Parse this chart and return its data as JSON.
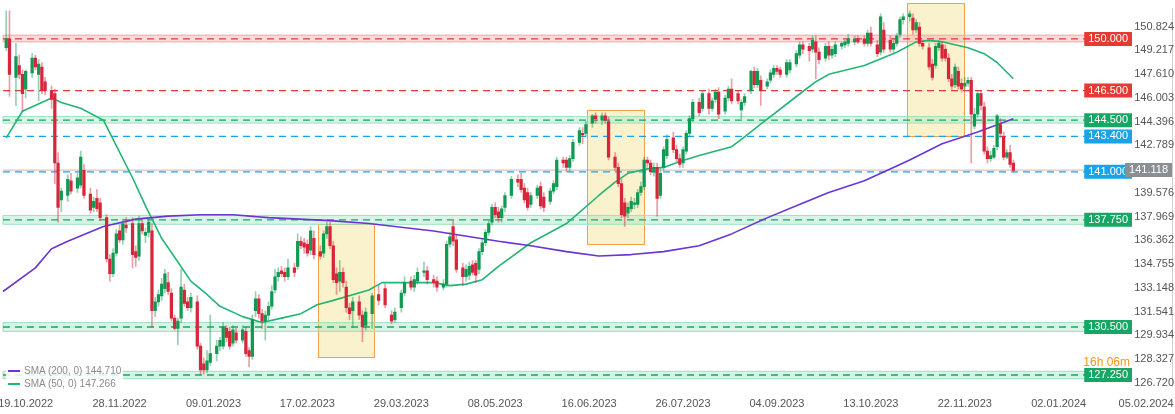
{
  "chart_data": {
    "type": "candlestick",
    "categories": [
      null,
      null,
      null,
      null,
      null,
      null,
      null,
      "19.10.2022",
      null,
      null,
      null,
      null,
      null,
      null,
      null,
      null,
      null,
      null,
      null,
      null,
      null,
      null,
      null,
      null,
      null,
      null,
      null,
      null,
      null,
      null,
      null,
      null,
      null,
      null,
      null,
      null,
      "28.11.2022",
      null,
      null,
      null,
      null,
      null,
      null,
      null,
      null,
      null,
      null,
      null,
      null,
      null,
      null,
      null,
      null,
      null,
      null,
      null,
      null,
      null,
      null,
      null,
      null,
      null,
      null,
      null,
      null,
      "09.01.2023",
      null,
      null,
      null,
      null,
      null,
      null,
      null,
      null,
      null,
      null,
      null,
      null,
      null,
      null,
      null,
      null,
      null,
      null,
      null,
      null,
      null,
      null,
      null,
      null,
      null,
      null,
      null,
      null,
      "17.02.2023",
      null,
      null,
      null,
      null,
      null,
      null,
      null,
      null,
      null,
      null,
      null,
      null,
      null,
      null,
      null,
      null,
      null,
      null,
      null,
      null,
      null,
      null,
      null,
      null,
      null,
      null,
      null,
      null,
      "29.03.2023",
      null,
      null,
      null,
      null,
      null,
      null,
      null,
      null,
      null,
      null,
      null,
      null,
      null,
      null,
      null,
      null,
      null,
      null,
      null,
      null,
      null,
      null,
      null,
      null,
      null,
      null,
      null,
      null,
      "08.05.2023",
      null,
      null,
      null,
      null,
      null,
      null,
      null,
      null,
      null,
      null,
      null,
      null,
      null,
      null,
      null,
      null,
      null,
      null,
      null,
      null,
      null,
      null,
      null,
      null,
      null,
      null,
      null,
      null,
      "16.06.2023",
      null,
      null,
      null,
      null,
      null,
      null,
      null,
      null,
      null,
      null,
      null,
      null,
      null,
      null,
      null,
      null,
      null,
      null,
      null,
      null,
      null,
      null,
      null,
      null,
      null,
      null,
      null,
      null,
      "26.07.2023",
      null,
      null,
      null,
      null,
      null,
      null,
      null,
      null,
      null,
      null,
      null,
      null,
      null,
      null,
      null,
      null,
      null,
      null,
      null,
      null,
      null,
      null,
      null,
      null,
      null,
      null,
      null,
      null,
      "04.09.2023",
      null,
      null,
      null,
      null,
      null,
      null,
      null,
      null,
      null,
      null,
      null,
      null,
      null,
      null,
      null,
      null,
      null,
      null,
      null,
      null,
      null,
      null,
      null,
      null,
      null,
      null,
      null,
      null,
      "13.10.2023",
      null,
      null,
      null,
      null,
      null,
      null,
      null,
      null,
      null,
      null,
      null,
      null,
      null,
      null,
      null,
      null,
      null,
      null,
      null,
      null,
      null,
      null,
      null,
      null,
      null,
      null,
      null,
      null,
      "22.11.2023",
      null,
      null,
      null,
      null,
      null,
      null,
      null,
      null,
      null,
      null,
      null,
      null,
      null,
      null,
      null,
      null,
      null,
      null,
      null,
      null,
      null,
      null,
      null,
      null,
      null,
      null,
      null,
      null,
      "02.01.2024",
      null,
      null,
      null,
      null,
      null,
      null,
      null,
      null,
      null,
      null,
      null,
      null,
      null,
      null,
      null,
      null,
      null,
      null,
      null,
      null,
      null,
      null,
      null,
      null,
      null,
      null,
      "05.02.2024",
      null,
      null,
      null,
      null,
      null,
      null,
      null,
      null
    ],
    "ohlc": [
      null,
      [
        149.4,
        151.9,
        149.2,
        150.0
      ],
      [
        150.0,
        151.9,
        146.1,
        147.6
      ],
      null,
      [
        147.4,
        149.7,
        145.5,
        148.8
      ],
      [
        148.2,
        148.9,
        147.3,
        147.6
      ],
      [
        147.6,
        147.9,
        145.1,
        146.3
      ],
      [
        146.6,
        147.9,
        146.0,
        147.8
      ],
      null,
      [
        147.7,
        149.0,
        147.4,
        148.7
      ],
      [
        148.7,
        148.9,
        147.9,
        148.1
      ],
      [
        147.6,
        148.6,
        145.8,
        148.3
      ],
      [
        148.1,
        148.4,
        146.3,
        146.5
      ],
      [
        147.1,
        147.4,
        146.2,
        146.5
      ],
      null,
      [
        146.5,
        146.8,
        145.3,
        145.9
      ],
      [
        146.3,
        146.6,
        140.2,
        141.6
      ],
      [
        141.6,
        142.3,
        137.6,
        138.6
      ],
      [
        139.1,
        139.9,
        138.3,
        139.7
      ],
      null,
      [
        139.4,
        140.8,
        139.0,
        140.5
      ],
      [
        140.4,
        140.9,
        139.5,
        139.7
      ],
      null,
      [
        139.9,
        140.9,
        139.6,
        140.6
      ],
      [
        140.1,
        142.4,
        139.9,
        142.0
      ],
      [
        141.1,
        141.5,
        139.2,
        139.4
      ],
      null,
      [
        139.5,
        139.9,
        138.2,
        138.4
      ],
      [
        138.6,
        139.3,
        138.3,
        139.0
      ],
      [
        139.2,
        139.8,
        138.3,
        138.5
      ],
      [
        138.9,
        139.2,
        137.7,
        137.9
      ],
      null,
      [
        137.9,
        138.1,
        134.9,
        135.1
      ],
      [
        135.1,
        135.4,
        133.6,
        134.1
      ],
      [
        134.1,
        135.8,
        133.9,
        135.5
      ],
      [
        135.5,
        137.1,
        135.3,
        136.8
      ],
      [
        137.0,
        137.4,
        136.2,
        136.4
      ],
      [
        136.4,
        137.8,
        136.1,
        137.5
      ],
      [
        137.4,
        137.9,
        136.9,
        137.2
      ],
      null,
      [
        137.5,
        137.9,
        134.5,
        135.4
      ],
      [
        135.6,
        136.0,
        134.6,
        135.2
      ],
      [
        135.3,
        138.0,
        135.0,
        137.5
      ],
      [
        137.5,
        137.8,
        136.8,
        137.0
      ],
      [
        136.7,
        137.2,
        136.2,
        136.9
      ],
      [
        136.9,
        137.9,
        136.6,
        137.6
      ],
      [
        137.0,
        137.5,
        130.5,
        131.6
      ],
      [
        131.6,
        132.5,
        131.2,
        132.2
      ],
      [
        132.2,
        133.0,
        131.9,
        132.7
      ],
      [
        132.6,
        133.8,
        132.3,
        133.4
      ],
      [
        133.1,
        134.4,
        132.8,
        134.1
      ],
      [
        133.5,
        134.2,
        132.7,
        132.9
      ],
      [
        132.8,
        133.1,
        130.9,
        131.1
      ],
      [
        131.1,
        131.3,
        130.3,
        130.4
      ],
      [
        130.4,
        131.1,
        129.3,
        130.9
      ],
      [
        131.1,
        134.4,
        130.8,
        133.2
      ],
      [
        133.0,
        133.4,
        131.9,
        132.1
      ],
      [
        132.2,
        132.5,
        131.6,
        131.8
      ],
      [
        131.8,
        132.8,
        131.5,
        132.5
      ],
      null,
      [
        132.2,
        132.6,
        129.0,
        129.2
      ],
      [
        129.2,
        129.4,
        127.3,
        127.6
      ],
      [
        128.0,
        128.4,
        127.3,
        127.6
      ],
      [
        127.6,
        128.9,
        127.4,
        128.2
      ],
      [
        128.1,
        131.3,
        127.9,
        128.7
      ],
      null,
      [
        128.7,
        129.6,
        128.2,
        129.2
      ],
      [
        129.2,
        129.8,
        128.9,
        129.6
      ],
      [
        129.2,
        130.8,
        129.0,
        130.5
      ],
      [
        130.4,
        130.6,
        129.5,
        129.8
      ],
      [
        130.2,
        130.5,
        129.0,
        129.2
      ],
      [
        129.4,
        130.6,
        129.2,
        130.3
      ],
      [
        130.1,
        130.4,
        129.4,
        129.6
      ],
      null,
      [
        129.6,
        130.6,
        129.4,
        130.3
      ],
      [
        130.2,
        130.5,
        128.5,
        128.7
      ],
      [
        128.9,
        129.1,
        127.8,
        128.5
      ],
      [
        128.5,
        131.3,
        128.3,
        131.0
      ],
      [
        131.6,
        132.9,
        131.2,
        132.4
      ],
      [
        132.4,
        132.7,
        131.1,
        131.4
      ],
      [
        131.4,
        131.7,
        130.4,
        130.9
      ],
      [
        130.9,
        131.6,
        129.6,
        131.3
      ],
      [
        131.3,
        132.2,
        131.0,
        131.9
      ],
      [
        131.9,
        133.3,
        131.7,
        132.9
      ],
      [
        133.0,
        134.4,
        132.8,
        133.9
      ],
      [
        133.9,
        134.5,
        133.6,
        134.2
      ],
      [
        134.3,
        134.6,
        133.9,
        134.1
      ],
      [
        134.2,
        134.5,
        133.6,
        133.9
      ],
      [
        133.9,
        135.1,
        133.7,
        134.5
      ],
      null,
      [
        134.5,
        134.8,
        133.9,
        134.2
      ],
      [
        134.6,
        136.8,
        134.4,
        136.3
      ],
      [
        136.3,
        136.6,
        135.8,
        136.0
      ],
      [
        136.2,
        136.5,
        135.5,
        135.9
      ],
      [
        136.1,
        136.4,
        135.3,
        135.5
      ],
      [
        135.7,
        137.3,
        135.4,
        137.0
      ],
      [
        136.5,
        137.0,
        135.1,
        135.4
      ],
      null,
      [
        135.6,
        136.0,
        135.1,
        135.3
      ],
      [
        135.5,
        137.0,
        135.2,
        136.8
      ],
      [
        136.8,
        137.6,
        136.5,
        137.3
      ],
      [
        137.3,
        137.6,
        135.8,
        136.0
      ],
      [
        136.0,
        136.3,
        133.5,
        133.7
      ],
      [
        134.1,
        134.5,
        132.7,
        133.5
      ],
      [
        133.6,
        135.0,
        132.9,
        134.2
      ],
      [
        134.2,
        134.5,
        133.2,
        133.5
      ],
      [
        133.2,
        133.6,
        131.5,
        131.8
      ],
      [
        131.8,
        132.1,
        131.0,
        131.4
      ],
      [
        131.6,
        132.5,
        130.5,
        132.2
      ],
      null,
      [
        132.2,
        132.6,
        131.0,
        131.3
      ],
      [
        131.3,
        131.6,
        129.5,
        130.5
      ],
      [
        130.6,
        131.8,
        130.3,
        131.5
      ],
      null,
      [
        131.4,
        132.8,
        130.4,
        132.6
      ],
      null,
      [
        132.7,
        133.3,
        132.0,
        132.3
      ],
      null,
      [
        133.1,
        133.4,
        131.8,
        132.0
      ],
      null,
      [
        131.3,
        131.6,
        130.7,
        130.9
      ],
      [
        131.0,
        131.8,
        130.8,
        131.5
      ],
      null,
      [
        131.8,
        133.0,
        131.5,
        132.8
      ],
      [
        132.8,
        133.9,
        132.6,
        133.5
      ],
      null,
      [
        133.6,
        133.9,
        133.0,
        133.2
      ],
      [
        133.2,
        134.0,
        132.9,
        133.7
      ],
      [
        133.6,
        134.5,
        133.4,
        134.2
      ],
      null,
      [
        134.2,
        134.9,
        133.9,
        134.3
      ],
      [
        134.3,
        134.6,
        133.4,
        133.7
      ],
      null,
      [
        133.7,
        134.0,
        133.2,
        133.5
      ],
      [
        133.6,
        133.9,
        132.9,
        133.2
      ],
      null,
      [
        133.2,
        133.7,
        133.0,
        133.4
      ],
      [
        133.4,
        136.3,
        133.2,
        136.1
      ],
      [
        136.1,
        136.9,
        135.9,
        136.6
      ],
      [
        137.3,
        137.7,
        136.0,
        136.3
      ],
      [
        136.4,
        136.7,
        134.2,
        134.4
      ],
      null,
      [
        134.5,
        134.8,
        133.3,
        133.9
      ],
      [
        133.9,
        134.7,
        133.6,
        134.4
      ],
      [
        134.0,
        134.9,
        133.7,
        134.6
      ],
      [
        134.7,
        135.0,
        134.0,
        134.2
      ],
      [
        134.8,
        135.0,
        133.5,
        134.0
      ],
      [
        134.4,
        135.8,
        134.1,
        135.6
      ],
      [
        135.6,
        136.4,
        135.4,
        136.2
      ],
      [
        136.2,
        137.1,
        136.0,
        136.9
      ],
      [
        136.9,
        137.7,
        136.7,
        137.5
      ],
      [
        137.6,
        138.8,
        137.4,
        138.6
      ],
      [
        138.6,
        138.9,
        137.9,
        138.1
      ],
      [
        138.3,
        138.6,
        137.6,
        137.9
      ],
      [
        137.9,
        138.7,
        137.6,
        138.5
      ],
      [
        138.6,
        139.6,
        138.3,
        139.4
      ],
      null,
      [
        139.4,
        140.7,
        139.2,
        140.5
      ],
      null,
      [
        140.5,
        140.8,
        140.0,
        140.3
      ],
      [
        140.5,
        140.9,
        139.6,
        139.8
      ],
      [
        139.9,
        140.2,
        138.9,
        139.1
      ],
      [
        139.6,
        139.9,
        138.4,
        138.6
      ],
      [
        138.8,
        139.6,
        138.6,
        139.4
      ],
      null,
      [
        139.4,
        140.1,
        139.2,
        139.9
      ],
      [
        140.0,
        140.3,
        138.5,
        138.7
      ],
      [
        139.3,
        139.6,
        138.3,
        138.6
      ],
      null,
      [
        139.0,
        139.9,
        138.8,
        139.7
      ],
      [
        139.7,
        140.4,
        139.5,
        140.2
      ],
      [
        140.0,
        142.0,
        139.8,
        141.8
      ],
      null,
      [
        141.8,
        142.0,
        141.3,
        141.6
      ],
      [
        141.8,
        142.0,
        141.0,
        141.3
      ],
      [
        141.3,
        142.1,
        141.0,
        141.9
      ],
      [
        141.9,
        143.2,
        141.7,
        143.0
      ],
      null,
      [
        143.0,
        144.0,
        142.8,
        143.8
      ],
      [
        143.6,
        144.0,
        142.9,
        143.5
      ],
      [
        143.6,
        144.4,
        143.4,
        144.2
      ],
      null,
      [
        144.3,
        144.9,
        144.0,
        144.8
      ],
      [
        144.8,
        145.0,
        144.3,
        144.6
      ],
      null,
      [
        144.5,
        145.0,
        144.2,
        144.8
      ],
      [
        144.8,
        145.0,
        144.3,
        144.5
      ],
      [
        144.4,
        144.7,
        141.8,
        142.0
      ],
      null,
      [
        142.0,
        142.3,
        141.1,
        141.3
      ],
      [
        141.3,
        141.6,
        140.0,
        140.2
      ],
      [
        140.2,
        140.5,
        137.9,
        138.1
      ],
      [
        138.9,
        139.2,
        137.3,
        138.0
      ],
      [
        138.2,
        138.9,
        137.9,
        138.6
      ],
      [
        138.5,
        139.3,
        138.3,
        139.0
      ],
      [
        138.8,
        139.2,
        138.5,
        138.9
      ],
      [
        138.8,
        139.8,
        138.6,
        139.6
      ],
      [
        139.6,
        140.3,
        139.4,
        140.0
      ],
      [
        140.0,
        142.0,
        139.8,
        141.8
      ],
      [
        141.8,
        142.0,
        141.3,
        141.6
      ],
      [
        141.6,
        141.8,
        140.8,
        141.0
      ],
      [
        141.0,
        141.6,
        140.7,
        141.3
      ],
      [
        141.3,
        141.6,
        138.0,
        139.2
      ],
      [
        139.4,
        141.2,
        139.2,
        140.9
      ],
      [
        141.3,
        142.7,
        141.1,
        142.5
      ],
      [
        142.1,
        143.5,
        141.9,
        143.2
      ],
      null,
      [
        143.3,
        143.7,
        142.3,
        142.5
      ],
      [
        142.5,
        142.8,
        141.7,
        141.9
      ],
      [
        141.9,
        142.2,
        141.3,
        141.5
      ],
      [
        141.6,
        142.7,
        141.3,
        142.5
      ],
      [
        142.4,
        143.8,
        142.2,
        143.6
      ],
      [
        143.6,
        144.8,
        143.4,
        144.6
      ],
      [
        144.6,
        145.9,
        144.4,
        145.7
      ],
      null,
      [
        145.7,
        146.0,
        144.8,
        145.0
      ],
      [
        145.3,
        146.5,
        145.1,
        146.3
      ],
      null,
      [
        146.3,
        146.6,
        144.9,
        145.3
      ],
      [
        145.3,
        146.0,
        145.1,
        145.8
      ],
      [
        145.9,
        146.6,
        145.7,
        146.4
      ],
      [
        146.4,
        146.7,
        144.6,
        144.9
      ],
      null,
      [
        145.1,
        146.2,
        144.9,
        146.0
      ],
      [
        146.0,
        146.8,
        145.8,
        146.6
      ],
      [
        146.6,
        147.3,
        145.6,
        145.8
      ],
      null,
      [
        146.3,
        146.5,
        145.6,
        145.8
      ],
      [
        145.2,
        145.9,
        144.6,
        145.7
      ],
      [
        145.7,
        146.3,
        145.5,
        146.1
      ],
      null,
      [
        146.5,
        147.9,
        146.3,
        147.8
      ],
      [
        147.8,
        148.1,
        146.7,
        146.9
      ],
      [
        146.9,
        148.0,
        146.7,
        147.8
      ],
      [
        147.2,
        147.5,
        145.5,
        146.5
      ],
      null,
      [
        146.8,
        147.3,
        146.6,
        147.1
      ],
      [
        147.2,
        147.9,
        147.0,
        147.7
      ],
      [
        147.6,
        148.2,
        147.4,
        148.0
      ],
      [
        148.0,
        148.2,
        147.6,
        147.8
      ],
      [
        147.9,
        148.1,
        147.4,
        147.6
      ],
      null,
      [
        147.6,
        148.6,
        147.4,
        148.4
      ],
      [
        147.9,
        148.6,
        147.7,
        148.4
      ],
      null,
      [
        148.3,
        149.2,
        148.1,
        149.0
      ],
      [
        148.9,
        149.8,
        148.7,
        149.6
      ],
      [
        149.6,
        149.8,
        149.0,
        149.3
      ],
      null,
      [
        149.5,
        149.7,
        148.5,
        149.2
      ],
      [
        149.3,
        150.2,
        149.1,
        149.9
      ],
      [
        149.8,
        150.2,
        147.3,
        149.1
      ],
      [
        149.1,
        149.4,
        148.3,
        148.6
      ],
      null,
      [
        148.7,
        149.7,
        148.5,
        149.5
      ],
      [
        149.5,
        149.8,
        148.6,
        148.9
      ],
      [
        148.9,
        149.5,
        148.7,
        149.3
      ],
      [
        149.0,
        149.8,
        148.8,
        149.6
      ],
      null,
      [
        149.5,
        149.8,
        149.3,
        149.7
      ],
      [
        149.6,
        149.9,
        149.4,
        149.8
      ],
      [
        149.7,
        150.3,
        149.5,
        150.0
      ],
      null,
      [
        149.8,
        150.2,
        149.6,
        150.0
      ],
      [
        150.0,
        150.2,
        149.7,
        149.8
      ],
      null,
      [
        150.0,
        150.2,
        149.5,
        149.7
      ],
      [
        149.7,
        150.6,
        149.5,
        150.4
      ],
      [
        150.4,
        150.8,
        149.5,
        149.7
      ],
      null,
      [
        149.6,
        149.9,
        148.8,
        149.0
      ],
      [
        149.1,
        151.7,
        148.9,
        151.5
      ],
      [
        150.6,
        151.1,
        149.1,
        149.3
      ],
      null,
      [
        149.9,
        150.2,
        149.1,
        149.3
      ],
      [
        149.3,
        150.0,
        149.1,
        149.7
      ],
      [
        149.7,
        150.4,
        149.5,
        150.2
      ],
      [
        150.3,
        151.5,
        150.1,
        151.3
      ],
      [
        151.3,
        151.7,
        151.0,
        151.5
      ],
      null,
      [
        151.5,
        151.9,
        151.2,
        151.7
      ],
      [
        151.4,
        151.7,
        150.3,
        150.6
      ],
      [
        150.6,
        151.3,
        150.4,
        151.1
      ],
      [
        150.8,
        151.1,
        149.5,
        149.7
      ],
      [
        149.7,
        149.9,
        149.3,
        149.5
      ],
      null,
      [
        149.4,
        149.7,
        147.9,
        148.1
      ],
      [
        148.3,
        148.6,
        147.2,
        147.4
      ],
      [
        148.2,
        149.7,
        148.0,
        149.5
      ],
      [
        149.4,
        149.9,
        149.2,
        149.7
      ],
      [
        149.6,
        149.8,
        148.5,
        148.7
      ],
      [
        149.3,
        149.6,
        148.5,
        148.7
      ],
      [
        148.7,
        149.0,
        147.1,
        147.3
      ],
      [
        147.3,
        147.6,
        146.6,
        146.8
      ],
      [
        146.9,
        148.3,
        146.7,
        148.1
      ],
      [
        147.8,
        148.1,
        146.6,
        146.8
      ],
      [
        147.0,
        147.3,
        146.4,
        146.6
      ],
      [
        146.8,
        147.4,
        146.6,
        147.0
      ],
      [
        147.0,
        147.4,
        146.8,
        147.2
      ],
      [
        147.2,
        147.4,
        141.6,
        144.9
      ],
      [
        144.1,
        145.3,
        143.9,
        144.9
      ],
      [
        144.9,
        146.5,
        144.7,
        146.3
      ],
      [
        146.3,
        146.5,
        145.2,
        145.5
      ],
      [
        145.4,
        145.7,
        142.2,
        142.4
      ],
      [
        142.4,
        142.7,
        141.6,
        141.9
      ],
      [
        141.9,
        142.4,
        141.7,
        142.1
      ],
      [
        142.0,
        142.8,
        141.9,
        142.6
      ],
      [
        142.7,
        144.9,
        142.5,
        144.8
      ],
      [
        144.2,
        144.6,
        143.3,
        143.6
      ],
      [
        143.4,
        143.7,
        141.8,
        142.0
      ],
      [
        142.0,
        142.5,
        141.9,
        142.3
      ],
      [
        142.3,
        142.8,
        141.3,
        141.5
      ],
      [
        141.6,
        141.8,
        141.0,
        141.1
      ],
      null,
      null,
      null,
      null,
      null,
      null,
      null,
      null,
      null,
      null,
      null,
      null,
      null,
      null,
      null,
      null,
      null,
      null,
      null,
      null,
      null,
      null,
      null,
      null,
      null,
      null,
      null,
      null,
      null,
      null,
      null,
      null,
      null,
      null,
      null,
      null,
      null,
      null,
      null,
      null,
      null,
      null,
      null,
      null,
      null,
      null,
      null,
      null,
      null
    ],
    "series": [
      {
        "type": "line",
        "name": "SMA (200, 0) 144.710",
        "color": "#6a35d4",
        "values": [
          132.9,
          null,
          null,
          null,
          null,
          null,
          null,
          null,
          null,
          null,
          134.5,
          null,
          null,
          null,
          null,
          135.8,
          null,
          null,
          null,
          null,
          136.3,
          null,
          null,
          null,
          null,
          null,
          null,
          null,
          null,
          null,
          null,
          137.3,
          null,
          null,
          null,
          null,
          null,
          null,
          null,
          null,
          null,
          137.8,
          null,
          null,
          null,
          null,
          null,
          null,
          null,
          null,
          null,
          138.0,
          null,
          null,
          null,
          null,
          null,
          null,
          null,
          null,
          null,
          138.1,
          null,
          null,
          null,
          null,
          null,
          null,
          null,
          null,
          null,
          138.1,
          null,
          null,
          null,
          null,
          null,
          null,
          null,
          null,
          null,
          null,
          137.9,
          null,
          null,
          null,
          null,
          null,
          null,
          null,
          null,
          null,
          null,
          null,
          null,
          null,
          null,
          null,
          null,
          null,
          null,
          137.7,
          null,
          null,
          null,
          null,
          null,
          null,
          null,
          null,
          null,
          null,
          null,
          137.5,
          null,
          null,
          null,
          null,
          null,
          null,
          null,
          null,
          null,
          null,
          null,
          null,
          null,
          null,
          null,
          null,
          null,
          null,
          null,
          137.0,
          null,
          null,
          null,
          null,
          null,
          null,
          null,
          null,
          null,
          null,
          null,
          null,
          null,
          null,
          null,
          null,
          null,
          null,
          null,
          136.3,
          null,
          null,
          null,
          null,
          null,
          null,
          null,
          null,
          null,
          136.0,
          null,
          null,
          null,
          null,
          null,
          null,
          null,
          null,
          null,
          null,
          135.6,
          null,
          null,
          null,
          null,
          null,
          null,
          null,
          null,
          null,
          135.3,
          null,
          null,
          null,
          null,
          null,
          null,
          null,
          null,
          null,
          135.4,
          null,
          null,
          null,
          null,
          null,
          null,
          null,
          null,
          null,
          135.6,
          null,
          null,
          null,
          null,
          null,
          null,
          null,
          null,
          null,
          null,
          136.0,
          null,
          null,
          null,
          null,
          null,
          null,
          null,
          null,
          null,
          136.8,
          null,
          null,
          null,
          null,
          null,
          null,
          null,
          null,
          null,
          137.8,
          null,
          null,
          null,
          null,
          null,
          null,
          null,
          null,
          null,
          138.7,
          null,
          null,
          null,
          null,
          null,
          null,
          null,
          null,
          null,
          139.6,
          null,
          null,
          null,
          null,
          null,
          null,
          null,
          null,
          null,
          null,
          140.4,
          null,
          null,
          null,
          null,
          null,
          null,
          null,
          null,
          null,
          141.4,
          null,
          null,
          null,
          141.8,
          null,
          null,
          null,
          null,
          null,
          null,
          null,
          null,
          null,
          142.9,
          null,
          null,
          null,
          null,
          null,
          null,
          null,
          null,
          null,
          null,
          143.7,
          null,
          null,
          null,
          null,
          null,
          null,
          null,
          null,
          null,
          null,
          144.6,
          null,
          null,
          null,
          null,
          null,
          null,
          null,
          null,
          null,
          null,
          null,
          null,
          null,
          null,
          null,
          null,
          null,
          null,
          null,
          null,
          null,
          null,
          null,
          null,
          null,
          null,
          null,
          null,
          null,
          null,
          null,
          null,
          null,
          null,
          null,
          null,
          null,
          null,
          null,
          null,
          null,
          null,
          null,
          null,
          null,
          null,
          null,
          null,
          null
        ]
      },
      {
        "type": "line",
        "name": "SMA (50, 0) 147.266",
        "color": "#22b573",
        "values": [
          null,
          143.3,
          null,
          null,
          null,
          null,
          145.1,
          null,
          null,
          null,
          null,
          null,
          null,
          null,
          null,
          146.0,
          null,
          null,
          145.7,
          null,
          null,
          null,
          null,
          null,
          145.3,
          null,
          null,
          null,
          null,
          null,
          null,
          144.5,
          null,
          null,
          143.2,
          null,
          null,
          null,
          null,
          null,
          140.6,
          null,
          null,
          null,
          138.7,
          null,
          null,
          null,
          null,
          136.5,
          null,
          null,
          null,
          null,
          134.9,
          null,
          null,
          null,
          133.6,
          null,
          null,
          null,
          null,
          132.7,
          null,
          null,
          null,
          131.9,
          null,
          null,
          null,
          null,
          null,
          null,
          131.2,
          null,
          null,
          null,
          null,
          null,
          130.8,
          null,
          null,
          null,
          null,
          null,
          131.1,
          null,
          null,
          null,
          null,
          null,
          131.4,
          null,
          null,
          null,
          null,
          132.0,
          null,
          null,
          null,
          null,
          132.3,
          null,
          null,
          null,
          null,
          null,
          null,
          null,
          null,
          null,
          null,
          133.0,
          null,
          null,
          null,
          133.5,
          null,
          null,
          null,
          null,
          null,
          133.5,
          null,
          null,
          null,
          null,
          null,
          null,
          null,
          null,
          null,
          133.5,
          null,
          null,
          null,
          null,
          133.3,
          null,
          null,
          null,
          null,
          133.4,
          null,
          null,
          null,
          null,
          133.7,
          null,
          null,
          null,
          null,
          134.6,
          null,
          null,
          null,
          null,
          null,
          null,
          null,
          null,
          null,
          136.2,
          null,
          null,
          null,
          null,
          null,
          null,
          null,
          null,
          null,
          null,
          137.5,
          null,
          null,
          null,
          null,
          null,
          null,
          null,
          null,
          null,
          139.4,
          null,
          null,
          null,
          null,
          140.3,
          null,
          null,
          null,
          140.9,
          null,
          null,
          null,
          null,
          null,
          141.2,
          null,
          null,
          null,
          null,
          141.3,
          null,
          null,
          null,
          null,
          141.7,
          null,
          null,
          null,
          null,
          null,
          142.1,
          null,
          null,
          null,
          null,
          null,
          null,
          null,
          null,
          null,
          142.7,
          null,
          null,
          143.2,
          null,
          null,
          null,
          null,
          null,
          null,
          144.4,
          null,
          null,
          null,
          null,
          null,
          null,
          null,
          null,
          null,
          146.1,
          null,
          null,
          null,
          null,
          null,
          147.1,
          null,
          null,
          null,
          147.6,
          null,
          null,
          null,
          null,
          null,
          null,
          null,
          null,
          null,
          null,
          148.2,
          null,
          null,
          null,
          null,
          null,
          null,
          null,
          null,
          null,
          149.1,
          null,
          null,
          null,
          null,
          null,
          149.8,
          null,
          null,
          null,
          149.9,
          null,
          null,
          null,
          149.8,
          null,
          null,
          null,
          149.6,
          null,
          null,
          null,
          149.4,
          null,
          null,
          null,
          null,
          149.0,
          null,
          null,
          null,
          148.4,
          null,
          null,
          null,
          null,
          147.3,
          null,
          null,
          null,
          null,
          null,
          null,
          null,
          null,
          null,
          null,
          null,
          null,
          null,
          null,
          null,
          null,
          null,
          null,
          null,
          null,
          null,
          null,
          null,
          null,
          null,
          null,
          null,
          null,
          null,
          null,
          null,
          null,
          null,
          null,
          null,
          null,
          null,
          null,
          null,
          null,
          null,
          null,
          null,
          null,
          null,
          null,
          null,
          null,
          null
        ]
      }
    ],
    "ylim": [
      126.45,
      152.05
    ],
    "yticks": [
      150.824,
      149.217,
      {
        "value": 147.61,
        "label": "147.610"
      },
      146.003,
      144.396,
      142.789,
      139.576,
      137.969,
      136.362,
      134.755,
      133.148,
      131.541,
      129.934,
      128.327,
      {
        "value": 126.72,
        "label": "126.720"
      }
    ],
    "ref_lines": [
      {
        "axis": "y",
        "value": 150,
        "label": "150.000",
        "color": "#e53935",
        "line_style": "dashed"
      },
      {
        "axis": "y",
        "value": 146.5,
        "label": "146.500",
        "color": "#e53935",
        "line_style": "dashed"
      },
      {
        "axis": "y",
        "value": 144.5,
        "label": "144.500",
        "color": "#17a765",
        "line_style": "dashed"
      },
      {
        "axis": "y",
        "value": 143.4,
        "label": "143.400",
        "color": "#1aa3e8",
        "line_style": "dashed"
      },
      {
        "axis": "y",
        "value": 141,
        "label": "141.000",
        "color": "#1aa3e8",
        "line_style": "dashed"
      },
      {
        "axis": "y",
        "value": 141.118,
        "label": "141.118",
        "color": "#8a8f94",
        "line_style": "solid"
      },
      {
        "axis": "y",
        "value": 137.75,
        "label": "137.750",
        "color": "#17a765",
        "line_style": "dashed"
      },
      {
        "axis": "y",
        "value": 130.5,
        "label": "130.500",
        "color": "#17a765",
        "line_style": "dashed"
      },
      {
        "axis": "y",
        "value": 127.25,
        "label": "127.250",
        "color": "#17a765",
        "line_style": "dashed"
      }
    ],
    "bands": [
      {
        "axis": "y",
        "from": 149.8,
        "to": 150.25,
        "color": "#f4a6a6"
      },
      {
        "axis": "y",
        "from": 144.3,
        "to": 144.75,
        "color": "#9fe0c0"
      },
      {
        "axis": "y",
        "from": 137.45,
        "to": 138.05,
        "color": "#9fe0c0"
      },
      {
        "axis": "y",
        "from": 130.2,
        "to": 130.8,
        "color": "#9fe0c0"
      },
      {
        "axis": "y",
        "from": 127.0,
        "to": 127.5,
        "color": "#9fe0c0"
      }
    ],
    "annotations": [
      "16h 06m"
    ],
    "legend": "bottom left"
  }
}
